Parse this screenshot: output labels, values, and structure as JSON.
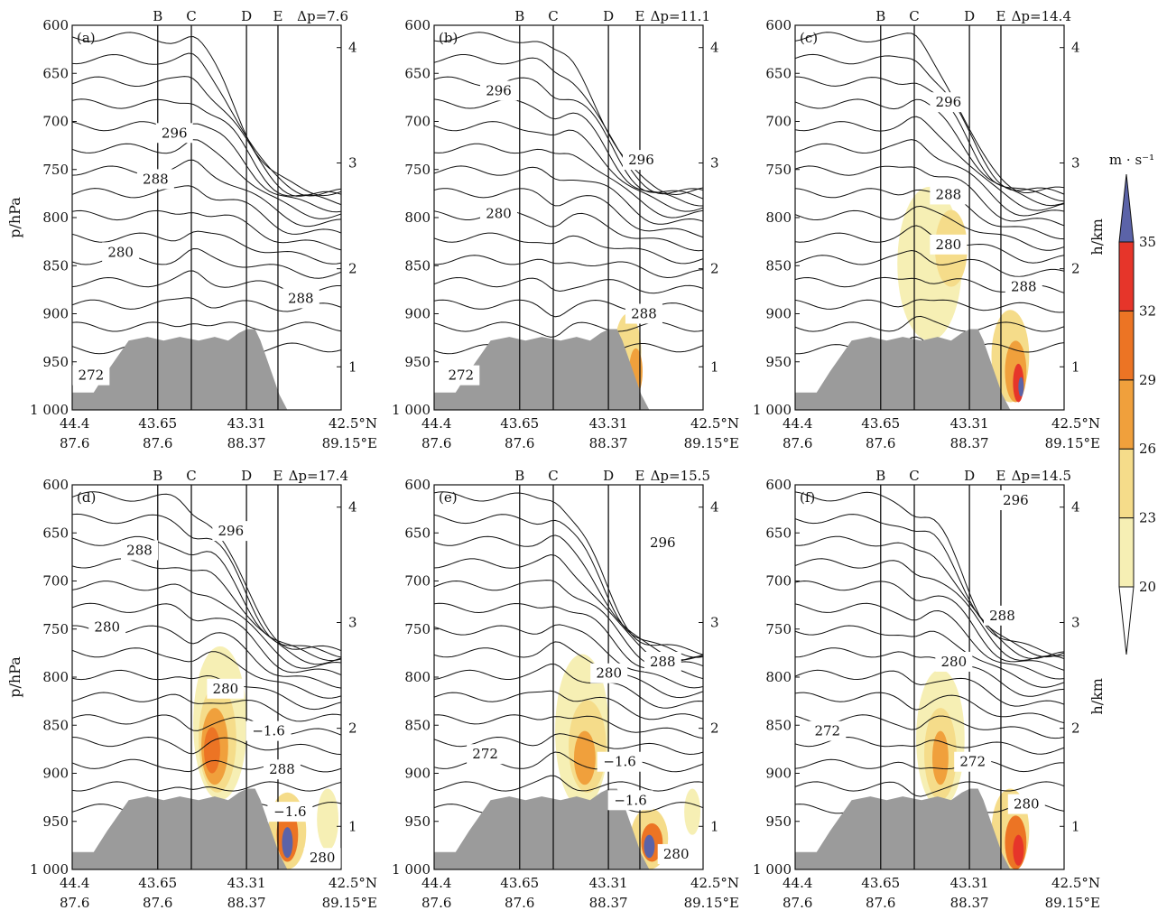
{
  "colors": {
    "terrain": "#9b9b9b",
    "wind_levels": [
      "#f6efb4",
      "#f5dc8a",
      "#f0a03c",
      "#ec7424",
      "#e6352a",
      "#5b63a8"
    ]
  },
  "chart_data": [
    {
      "type": "contour",
      "panel": "(a)",
      "dp_label": "Δp=7.6",
      "section_labels": [
        "B",
        "C",
        "D",
        "E"
      ],
      "x_tick_lat": [
        "44.4",
        "43.65",
        "43.31",
        "42.5°N"
      ],
      "x_tick_lon": [
        "87.6",
        "87.6",
        "88.37",
        "89.15°E"
      ],
      "y_ticks": [
        "600",
        "650",
        "700",
        "750",
        "800",
        "850",
        "900",
        "950",
        "1 000"
      ],
      "y2_ticks": [
        "4",
        "3",
        "2",
        "1"
      ],
      "ylabel": "p/hPa",
      "y2label": "",
      "contour_labels": [
        "296",
        "288",
        "280",
        "288",
        "272"
      ]
    },
    {
      "type": "contour",
      "panel": "(b)",
      "dp_label": "Δp=11.1",
      "section_labels": [
        "B",
        "C",
        "D",
        "E"
      ],
      "x_tick_lat": [
        "44.4",
        "43.65",
        "43.31",
        "42.5°N"
      ],
      "x_tick_lon": [
        "87.6",
        "87.6",
        "88.37",
        "89.15°E"
      ],
      "y_ticks": [
        "600",
        "650",
        "700",
        "750",
        "800",
        "850",
        "900",
        "950",
        "1 000"
      ],
      "y2_ticks": [
        "4",
        "3",
        "2",
        "1"
      ],
      "ylabel": "",
      "y2label": "",
      "contour_labels": [
        "296",
        "296",
        "280",
        "288",
        "272"
      ]
    },
    {
      "type": "contour",
      "panel": "(c)",
      "dp_label": "Δp=14.4",
      "section_labels": [
        "B",
        "C",
        "D",
        "E"
      ],
      "x_tick_lat": [
        "44.4",
        "43.65",
        "43.31",
        "42.5°N"
      ],
      "x_tick_lon": [
        "87.6",
        "87.6",
        "88.37",
        "89.15°E"
      ],
      "y_ticks": [
        "600",
        "650",
        "700",
        "750",
        "800",
        "850",
        "900",
        "950",
        "1 000"
      ],
      "y2_ticks": [
        "4",
        "3",
        "2",
        "1"
      ],
      "ylabel": "",
      "y2label": "h/km",
      "contour_labels": [
        "296",
        "288",
        "280",
        "288"
      ]
    },
    {
      "type": "contour",
      "panel": "(d)",
      "dp_label": "Δp=17.4",
      "section_labels": [
        "B",
        "C",
        "D",
        "E"
      ],
      "x_tick_lat": [
        "44.4",
        "43.65",
        "43.31",
        "42.5°N"
      ],
      "x_tick_lon": [
        "87.6",
        "87.6",
        "88.37",
        "89.15°E"
      ],
      "y_ticks": [
        "600",
        "650",
        "700",
        "750",
        "800",
        "850",
        "900",
        "950",
        "1 000"
      ],
      "y2_ticks": [
        "4",
        "3",
        "2",
        "1"
      ],
      "ylabel": "p/hPa",
      "y2label": "",
      "contour_labels": [
        "296",
        "288",
        "280",
        "280",
        "−1.6",
        "288",
        "−1.6",
        "280"
      ]
    },
    {
      "type": "contour",
      "panel": "(e)",
      "dp_label": "Δp=15.5",
      "section_labels": [
        "B",
        "C",
        "D",
        "E"
      ],
      "x_tick_lat": [
        "44.4",
        "43.65",
        "43.31",
        "42.5°N"
      ],
      "x_tick_lon": [
        "87.6",
        "87.6",
        "88.37",
        "89.15°E"
      ],
      "y_ticks": [
        "600",
        "650",
        "700",
        "750",
        "800",
        "850",
        "900",
        "950",
        "1 000"
      ],
      "y2_ticks": [
        "4",
        "3",
        "2",
        "1"
      ],
      "ylabel": "",
      "y2label": "",
      "contour_labels": [
        "296",
        "280",
        "288",
        "272",
        "−1.6",
        "−1.6",
        "280"
      ]
    },
    {
      "type": "contour",
      "panel": "(f)",
      "dp_label": "Δp=14.5",
      "section_labels": [
        "B",
        "C",
        "D",
        "E"
      ],
      "x_tick_lat": [
        "44.4",
        "43.65",
        "43.31",
        "42.5°N"
      ],
      "x_tick_lon": [
        "87.6",
        "87.6",
        "88.37",
        "89.15°E"
      ],
      "y_ticks": [
        "600",
        "650",
        "700",
        "750",
        "800",
        "850",
        "900",
        "950",
        "1 000"
      ],
      "y2_ticks": [
        "4",
        "3",
        "2",
        "1"
      ],
      "ylabel": "",
      "y2label": "h/km",
      "contour_labels": [
        "296",
        "288",
        "280",
        "272",
        "272",
        "280"
      ]
    }
  ],
  "colorbar": {
    "unit": "m · s⁻¹",
    "levels": [
      "20",
      "23",
      "26",
      "29",
      "32",
      "35"
    ]
  }
}
